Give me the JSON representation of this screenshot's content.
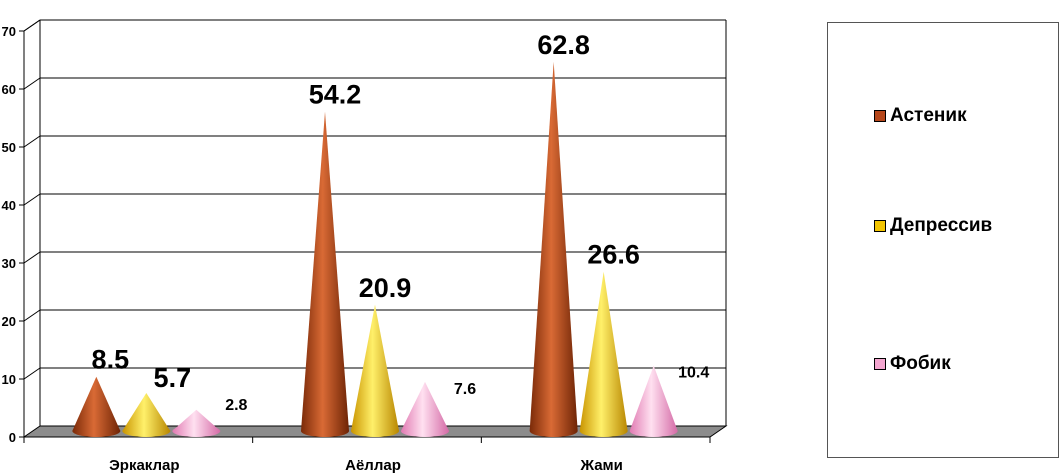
{
  "chart_data": {
    "type": "bar",
    "categories": [
      "Эркаклар",
      "Аёллар",
      "Жами"
    ],
    "series": [
      {
        "name": "Астеник",
        "values": [
          8.5,
          54.2,
          62.8
        ],
        "color": "#B5461A"
      },
      {
        "name": "Депрессив",
        "values": [
          5.7,
          20.9,
          26.6
        ],
        "color": "#F2C400"
      },
      {
        "name": "Фобик",
        "values": [
          2.8,
          7.6,
          10.4
        ],
        "color": "#F4A6D0"
      }
    ],
    "ylim": [
      0,
      70
    ],
    "yticks": [
      0,
      10,
      20,
      30,
      40,
      50,
      60,
      70
    ],
    "grid": true,
    "legend": "right",
    "mark_shape": "cone"
  }
}
